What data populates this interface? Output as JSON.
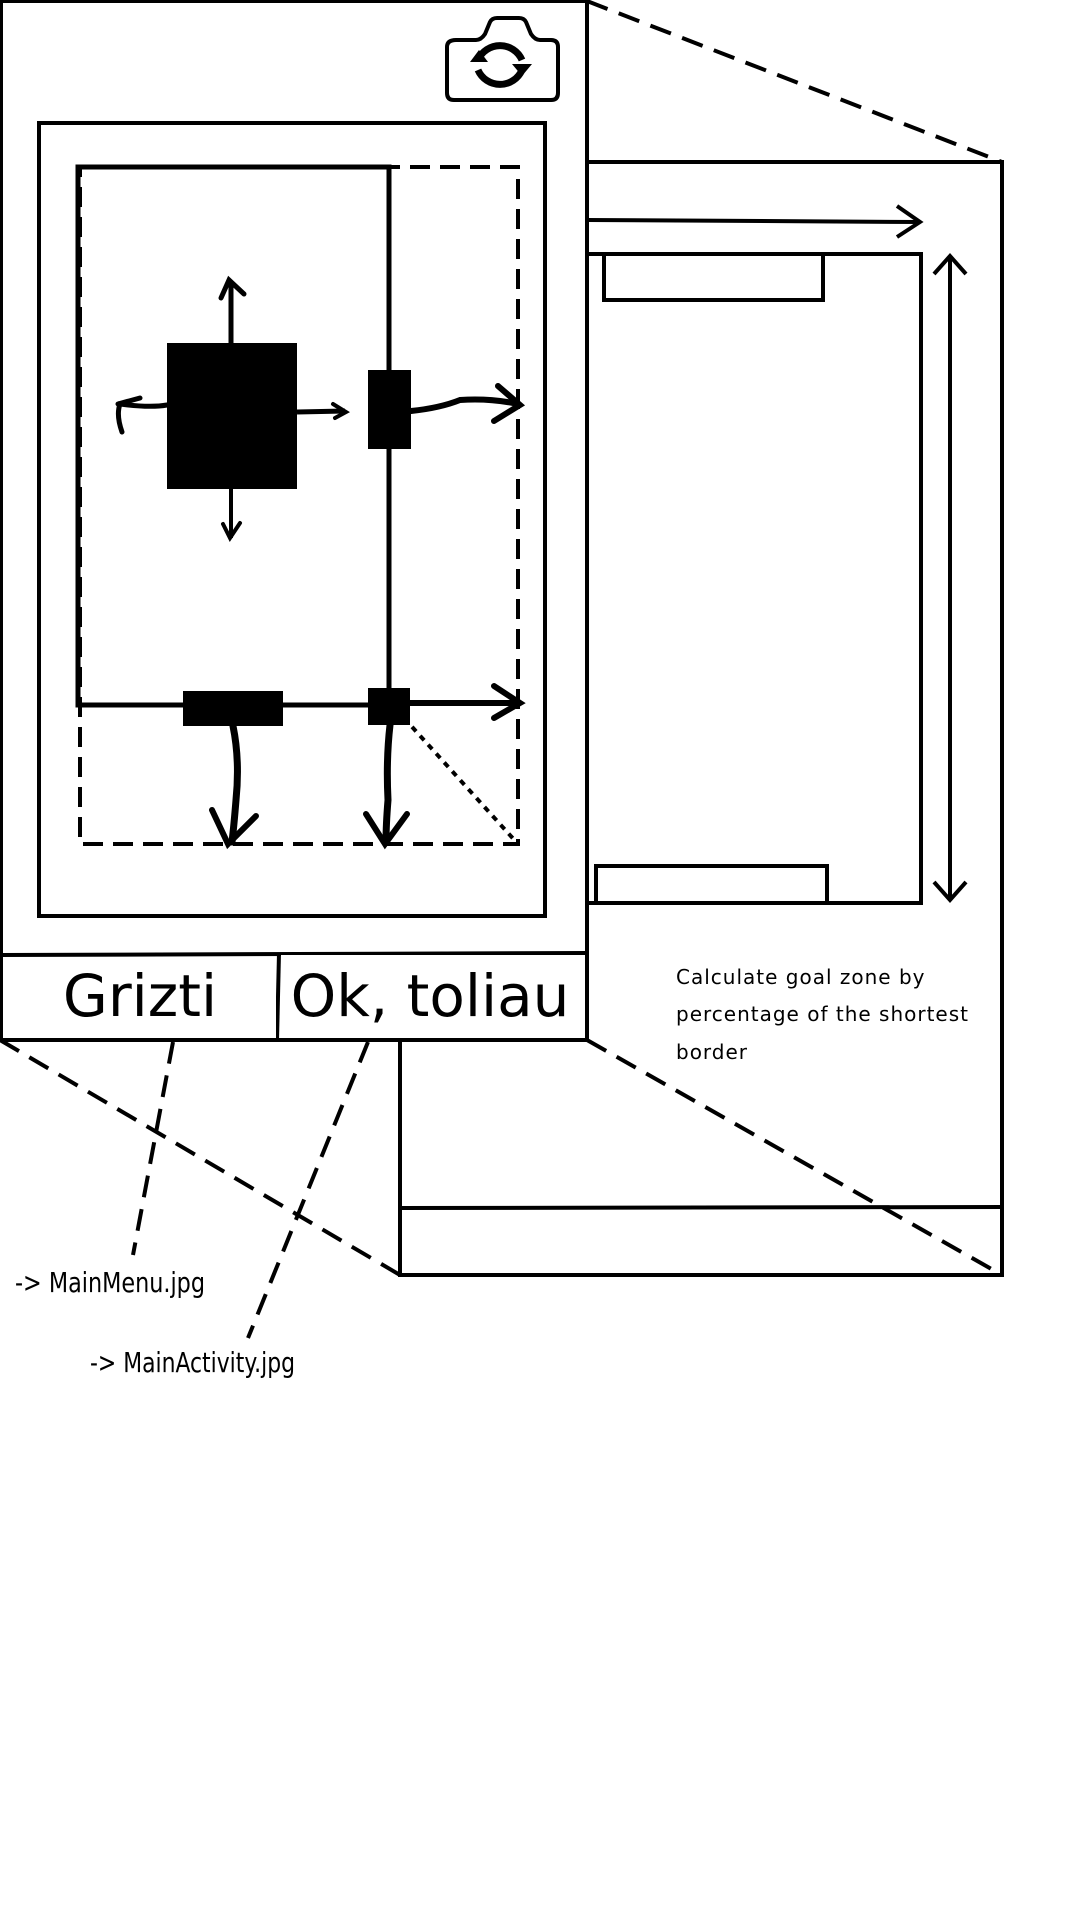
{
  "phone": {
    "camera_icon": "camera-switch-icon",
    "buttons": {
      "back_label": "Grizti",
      "ok_label": "Ok, toliau"
    }
  },
  "annotation": {
    "note_lines": [
      "Calculate goal zone by",
      "percentage of the shortest",
      "border"
    ]
  },
  "links": {
    "back_target": "-> MainMenu.jpg",
    "ok_target": "-> MainActivity.jpg"
  }
}
